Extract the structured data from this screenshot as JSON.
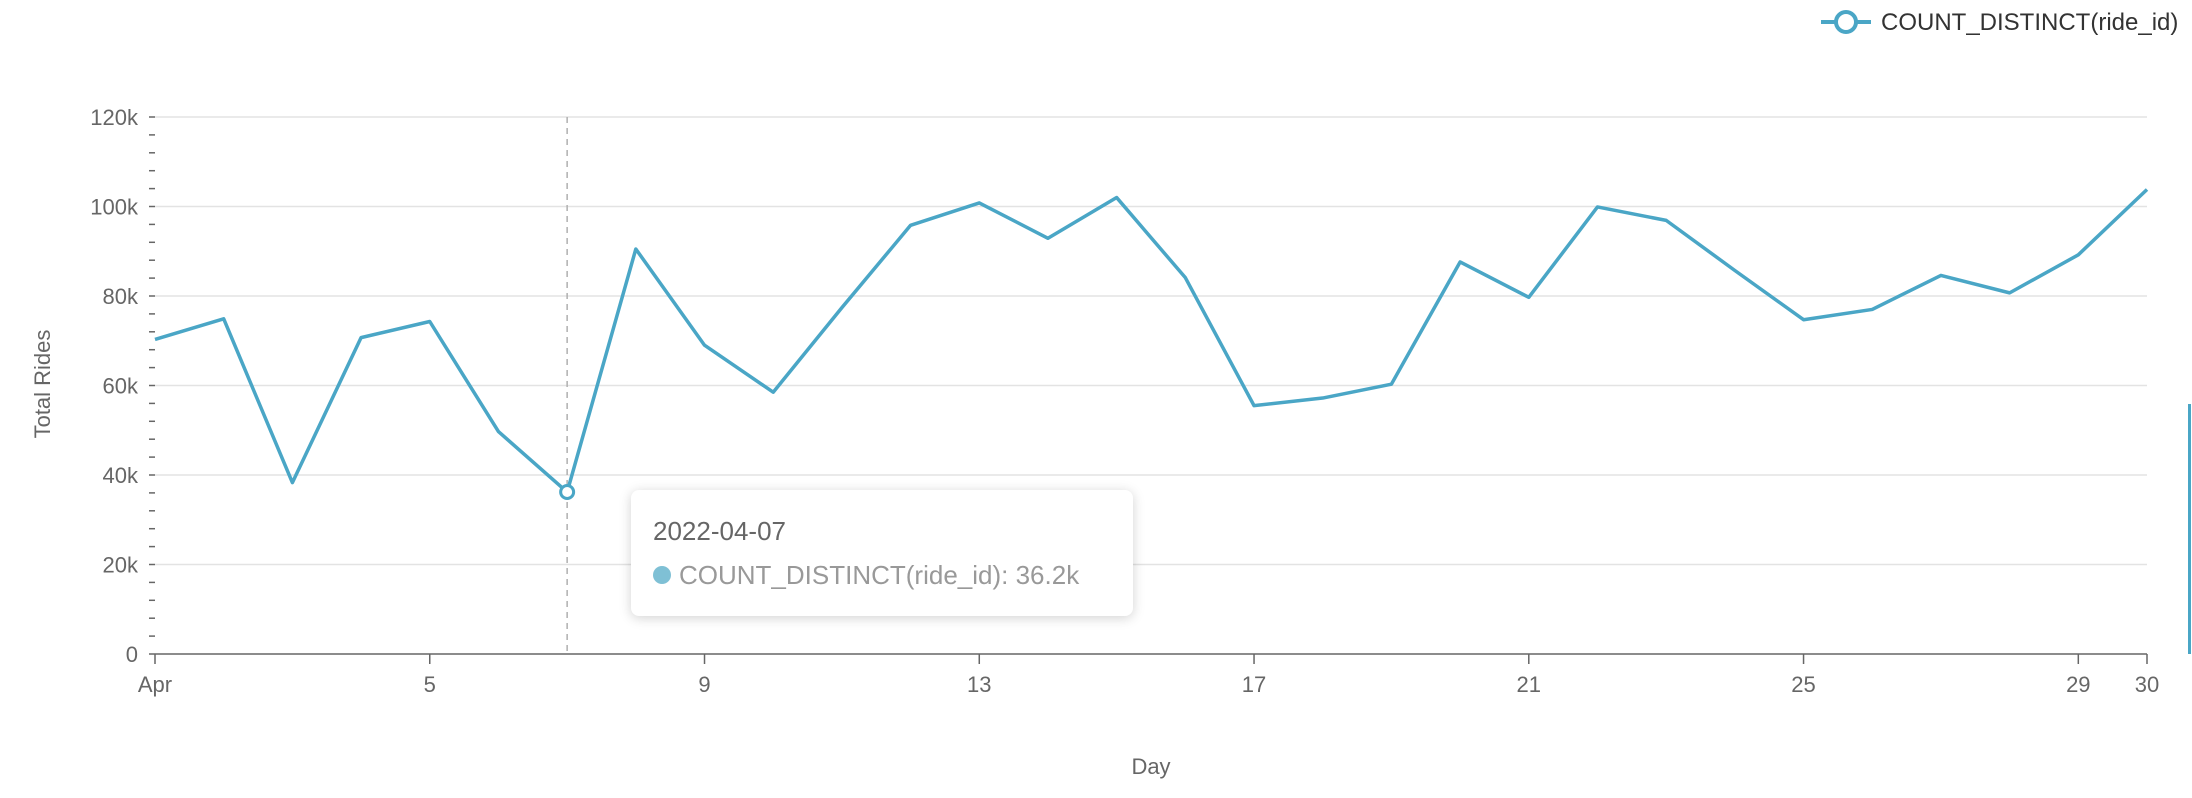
{
  "chart_data": {
    "type": "line",
    "title": "",
    "xlabel": "Day",
    "ylabel": "Total Rides",
    "ylim": [
      0,
      120000
    ],
    "yticks": [
      {
        "value": 0,
        "label": "0"
      },
      {
        "value": 20000,
        "label": "20k"
      },
      {
        "value": 40000,
        "label": "40k"
      },
      {
        "value": 60000,
        "label": "60k"
      },
      {
        "value": 80000,
        "label": "80k"
      },
      {
        "value": 100000,
        "label": "100k"
      },
      {
        "value": 120000,
        "label": "120k"
      }
    ],
    "xticks": [
      {
        "day": 1,
        "label": "Apr"
      },
      {
        "day": 5,
        "label": "5"
      },
      {
        "day": 9,
        "label": "9"
      },
      {
        "day": 13,
        "label": "13"
      },
      {
        "day": 17,
        "label": "17"
      },
      {
        "day": 21,
        "label": "21"
      },
      {
        "day": 25,
        "label": "25"
      },
      {
        "day": 29,
        "label": "29"
      },
      {
        "day": 30,
        "label": "30"
      }
    ],
    "grid": true,
    "legend_position": "top-right",
    "series": [
      {
        "name": "COUNT_DISTINCT(ride_id)",
        "color": "#4aa6c6",
        "x": [
          "2022-04-01",
          "2022-04-02",
          "2022-04-03",
          "2022-04-04",
          "2022-04-05",
          "2022-04-06",
          "2022-04-07",
          "2022-04-08",
          "2022-04-09",
          "2022-04-10",
          "2022-04-11",
          "2022-04-12",
          "2022-04-13",
          "2022-04-14",
          "2022-04-15",
          "2022-04-16",
          "2022-04-17",
          "2022-04-18",
          "2022-04-19",
          "2022-04-20",
          "2022-04-21",
          "2022-04-22",
          "2022-04-23",
          "2022-04-24",
          "2022-04-25",
          "2022-04-26",
          "2022-04-27",
          "2022-04-28",
          "2022-04-29",
          "2022-04-30"
        ],
        "values": [
          70300,
          74900,
          38300,
          70700,
          74300,
          49700,
          36200,
          90500,
          69000,
          58500,
          77400,
          95800,
          100800,
          92900,
          102000,
          84100,
          55500,
          57200,
          60300,
          87600,
          79700,
          99900,
          96900,
          85700,
          74700,
          77000,
          84600,
          80700,
          89200,
          103800
        ]
      }
    ],
    "highlight": {
      "date": "2022-04-07",
      "value": 36200
    }
  },
  "tooltip": {
    "title": "2022-04-07",
    "series_label": "COUNT_DISTINCT(ride_id): 36.2k",
    "dot_color": "#7fc0d5"
  }
}
